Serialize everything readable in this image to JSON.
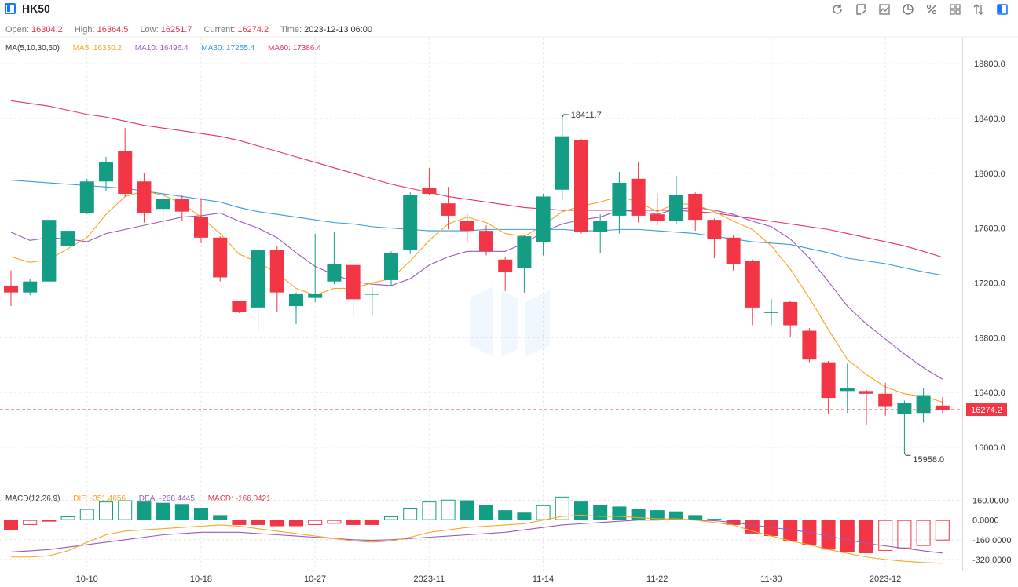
{
  "header": {
    "symbol": "HK50",
    "tools": [
      "refresh-icon",
      "draw-icon",
      "area-chart-icon",
      "pie-chart-icon",
      "percent-icon",
      "layout-icon",
      "compare-icon",
      "sidebar-icon"
    ]
  },
  "info": {
    "open_label": "Open:",
    "open": "16304.2",
    "high_label": "High:",
    "high": "16364.5",
    "low_label": "Low:",
    "low": "16251.7",
    "current_label": "Current:",
    "current": "16274.2",
    "time_label": "Time:",
    "time": "2023-12-13 06:00"
  },
  "ma_legend": {
    "title": "MA(5,10,30,60)",
    "ma5": "MA5: 16330.2",
    "ma10": "MA10: 16496.4",
    "ma30": "MA30: 17255.4",
    "ma60": "MA60: 17386.4"
  },
  "macd_legend": {
    "title": "MACD(12,26,9)",
    "dif": "DIF: -351.4656",
    "dea": "DEA: -268.4445",
    "macd": "MACD: -166.0421"
  },
  "colors": {
    "up": "#139d84",
    "down": "#f23645",
    "ma5": "#f5a623",
    "ma10": "#9b59b6",
    "ma30": "#3a9ad9",
    "ma60": "#e0336a",
    "dif": "#f5a623",
    "dea": "#9b59b6"
  },
  "chart_data": [
    {
      "type": "candlestick",
      "x": [
        "10-10",
        "10-18",
        "10-27",
        "2023-11",
        "11-14",
        "11-22",
        "11-30",
        "2023-12"
      ],
      "y_ticks": [
        "16000.0",
        "16400.0",
        "16800.0",
        "17200.0",
        "17600.0",
        "18000.0",
        "18400.0",
        "18800.0"
      ],
      "ylim": [
        15690,
        18990
      ],
      "current_price_label": "16274.2",
      "current_price": 16274.2,
      "high_marker": {
        "value": 18411.7,
        "label": "18411.7"
      },
      "low_marker": {
        "value": 15958.0,
        "label": "15958.0"
      },
      "candles": [
        [
          17180,
          17130,
          17290,
          17030
        ],
        [
          17130,
          17210,
          17230,
          17110
        ],
        [
          17210,
          17660,
          17690,
          17200
        ],
        [
          17470,
          17580,
          17610,
          17410
        ],
        [
          17710,
          17940,
          17960,
          17700
        ],
        [
          17940,
          18080,
          18120,
          17870
        ],
        [
          18160,
          17850,
          18330,
          17830
        ],
        [
          17940,
          17710,
          18000,
          17640
        ],
        [
          17740,
          17810,
          17850,
          17600
        ],
        [
          17810,
          17720,
          17840,
          17650
        ],
        [
          17680,
          17530,
          17820,
          17490
        ],
        [
          17530,
          17240,
          17540,
          17210
        ],
        [
          17070,
          16990,
          17070,
          16980
        ],
        [
          17020,
          17440,
          17480,
          16850
        ],
        [
          17440,
          17130,
          17470,
          16990
        ],
        [
          17030,
          17120,
          17130,
          16900
        ],
        [
          17090,
          17120,
          17560,
          17060
        ],
        [
          17210,
          17340,
          17570,
          17190
        ],
        [
          17330,
          17080,
          17340,
          16950
        ],
        [
          17120,
          17120,
          17170,
          16960
        ],
        [
          17220,
          17420,
          17430,
          17180
        ],
        [
          17440,
          17840,
          17860,
          17410
        ],
        [
          17890,
          17850,
          18040,
          17840
        ],
        [
          17780,
          17690,
          17900,
          17590
        ],
        [
          17650,
          17580,
          17700,
          17500
        ],
        [
          17580,
          17430,
          17620,
          17400
        ],
        [
          17370,
          17280,
          17390,
          17140
        ],
        [
          17310,
          17540,
          17550,
          17130
        ],
        [
          17500,
          17830,
          17850,
          17400
        ],
        [
          17880,
          18270,
          18411.7,
          17800
        ],
        [
          18240,
          17570,
          18250,
          17560
        ],
        [
          17570,
          17650,
          17700,
          17420
        ],
        [
          17690,
          17930,
          18010,
          17560
        ],
        [
          17960,
          17690,
          18080,
          17640
        ],
        [
          17700,
          17650,
          17850,
          17620
        ],
        [
          17650,
          17840,
          17980,
          17630
        ],
        [
          17850,
          17660,
          17860,
          17580
        ],
        [
          17660,
          17520,
          17670,
          17380
        ],
        [
          17530,
          17340,
          17550,
          17290
        ],
        [
          17360,
          17020,
          17370,
          16890
        ],
        [
          16980,
          16990,
          17080,
          16890
        ],
        [
          17060,
          16890,
          17070,
          16800
        ],
        [
          16850,
          16640,
          16870,
          16620
        ],
        [
          16620,
          16360,
          16630,
          16240
        ],
        [
          16410,
          16430,
          16610,
          16250
        ],
        [
          16410,
          16390,
          16420,
          16160
        ],
        [
          16390,
          16300,
          16470,
          16230
        ],
        [
          16240,
          16320,
          16340,
          15958
        ],
        [
          16250,
          16380,
          16430,
          16180
        ],
        [
          16304.2,
          16274.2,
          16364.5,
          16251.7
        ]
      ],
      "ma5": [
        17390,
        17350,
        17370,
        17450,
        17530,
        17700,
        17830,
        17870,
        17840,
        17780,
        17680,
        17560,
        17410,
        17350,
        17270,
        17160,
        17110,
        17160,
        17160,
        17200,
        17230,
        17360,
        17510,
        17630,
        17680,
        17640,
        17560,
        17540,
        17620,
        17720,
        17760,
        17790,
        17830,
        17790,
        17720,
        17780,
        17770,
        17720,
        17650,
        17590,
        17470,
        17300,
        17090,
        16860,
        16640,
        16530,
        16440,
        16390,
        16370,
        16330.2
      ],
      "ma10": [
        17570,
        17510,
        17530,
        17520,
        17500,
        17560,
        17590,
        17620,
        17650,
        17680,
        17690,
        17710,
        17650,
        17600,
        17530,
        17420,
        17320,
        17260,
        17210,
        17190,
        17180,
        17230,
        17330,
        17390,
        17430,
        17430,
        17430,
        17490,
        17570,
        17630,
        17660,
        17680,
        17730,
        17720,
        17700,
        17740,
        17750,
        17730,
        17700,
        17650,
        17610,
        17520,
        17380,
        17210,
        17030,
        16900,
        16790,
        16680,
        16580,
        16496.4
      ],
      "ma30": [
        17950,
        17940,
        17930,
        17920,
        17910,
        17900,
        17890,
        17870,
        17850,
        17830,
        17810,
        17790,
        17750,
        17720,
        17700,
        17680,
        17660,
        17640,
        17630,
        17610,
        17600,
        17590,
        17580,
        17580,
        17580,
        17590,
        17590,
        17590,
        17590,
        17590,
        17580,
        17580,
        17590,
        17590,
        17580,
        17570,
        17560,
        17540,
        17520,
        17500,
        17490,
        17480,
        17450,
        17420,
        17380,
        17360,
        17340,
        17310,
        17280,
        17255.4
      ],
      "ma60": [
        18530,
        18510,
        18490,
        18460,
        18430,
        18410,
        18380,
        18350,
        18330,
        18310,
        18290,
        18270,
        18240,
        18200,
        18160,
        18120,
        18080,
        18040,
        18000,
        17960,
        17920,
        17890,
        17860,
        17830,
        17810,
        17790,
        17770,
        17750,
        17740,
        17730,
        17730,
        17730,
        17730,
        17730,
        17730,
        17730,
        17720,
        17710,
        17690,
        17670,
        17650,
        17630,
        17610,
        17590,
        17560,
        17530,
        17500,
        17470,
        17430,
        17386.4
      ]
    },
    {
      "type": "macd",
      "y_ticks": [
        "-320.0000",
        "-160.0000",
        "0.0000",
        "160.0000"
      ],
      "ylim": [
        -410,
        240
      ],
      "macd": [
        -80,
        -40,
        -10,
        30,
        90,
        150,
        160,
        150,
        140,
        130,
        100,
        40,
        -40,
        -40,
        -50,
        -50,
        -40,
        -30,
        -40,
        -40,
        30,
        100,
        150,
        165,
        160,
        120,
        80,
        60,
        120,
        190,
        150,
        120,
        110,
        90,
        80,
        70,
        40,
        10,
        -40,
        -110,
        -130,
        -170,
        -200,
        -240,
        -260,
        -270,
        -250,
        -230,
        -210,
        -166.0421
      ],
      "dif": [
        -300,
        -300,
        -290,
        -250,
        -180,
        -120,
        -90,
        -80,
        -70,
        -60,
        -50,
        -40,
        -50,
        -70,
        -90,
        -110,
        -130,
        -150,
        -170,
        -180,
        -170,
        -140,
        -100,
        -80,
        -60,
        -50,
        -40,
        -30,
        0,
        30,
        40,
        30,
        30,
        20,
        10,
        10,
        0,
        -20,
        -40,
        -90,
        -130,
        -170,
        -200,
        -240,
        -270,
        -300,
        -320,
        -335,
        -345,
        -351.4656
      ],
      "dea": [
        -260,
        -250,
        -240,
        -220,
        -200,
        -180,
        -160,
        -140,
        -120,
        -110,
        -100,
        -100,
        -100,
        -110,
        -120,
        -130,
        -140,
        -150,
        -160,
        -165,
        -160,
        -150,
        -140,
        -130,
        -120,
        -110,
        -100,
        -80,
        -60,
        -40,
        -30,
        -20,
        -10,
        0,
        0,
        5,
        0,
        -5,
        -20,
        -40,
        -60,
        -80,
        -100,
        -130,
        -160,
        -190,
        -210,
        -230,
        -250,
        -268.4445
      ]
    }
  ]
}
